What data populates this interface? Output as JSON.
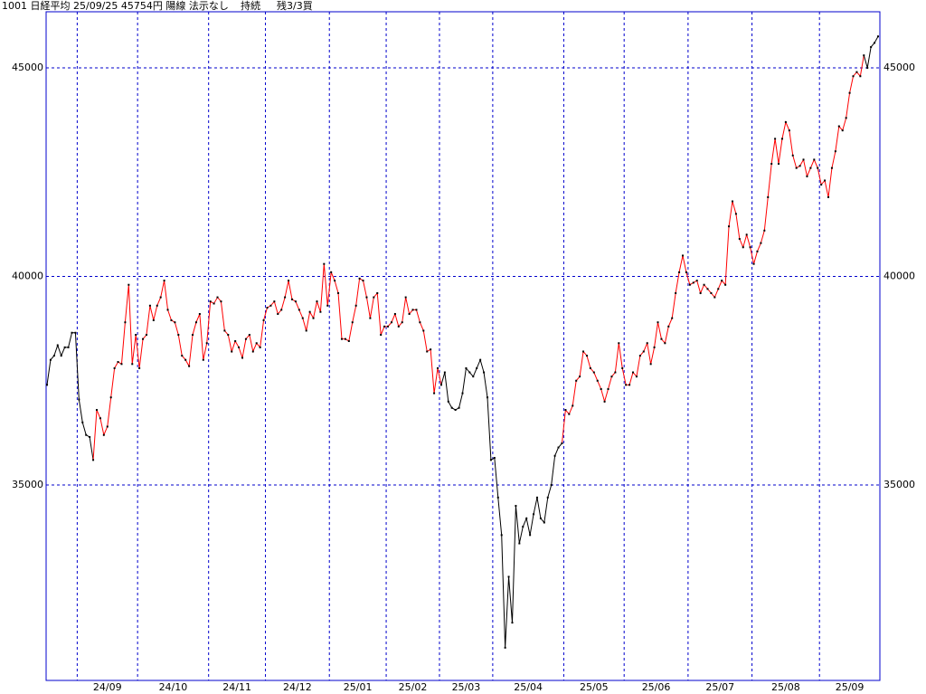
{
  "chart_data": {
    "type": "line",
    "title": "1001 日経平均 25/09/25 45754円 陽線 法示なし",
    "status": "持続",
    "position": "残3/3買",
    "values": [
      37400,
      38000,
      38100,
      38350,
      38100,
      38300,
      38300,
      38650,
      38650,
      37050,
      36500,
      36200,
      36150,
      35600,
      36800,
      36600,
      36200,
      36400,
      37100,
      37800,
      37950,
      37900,
      38900,
      39800,
      37900,
      38600,
      37800,
      38500,
      38600,
      39300,
      38950,
      39300,
      39500,
      39900,
      39200,
      38950,
      38900,
      38600,
      38100,
      38000,
      37850,
      38600,
      38900,
      39100,
      38000,
      38400,
      39400,
      39350,
      39500,
      39400,
      38700,
      38600,
      38200,
      38450,
      38300,
      38050,
      38500,
      38600,
      38200,
      38400,
      38300,
      38950,
      39250,
      39300,
      39400,
      39100,
      39200,
      39500,
      39900,
      39450,
      39400,
      39200,
      39000,
      38700,
      39150,
      39000,
      39400,
      39150,
      40300,
      39300,
      40100,
      39900,
      39600,
      38500,
      38500,
      38450,
      38900,
      39300,
      39950,
      39900,
      39500,
      39000,
      39500,
      39600,
      38600,
      38800,
      38800,
      38900,
      39100,
      38800,
      38900,
      39500,
      39100,
      39200,
      39200,
      38900,
      38700,
      38200,
      38250,
      37200,
      37800,
      37400,
      37700,
      37000,
      36850,
      36800,
      36850,
      37200,
      37800,
      37700,
      37600,
      37800,
      38000,
      37700,
      37100,
      35600,
      35650,
      34700,
      33800,
      31100,
      32800,
      31700,
      34500,
      33600,
      34000,
      34200,
      33800,
      34300,
      34700,
      34200,
      34100,
      34700,
      35000,
      35700,
      35900,
      36000,
      36800,
      36700,
      36900,
      37500,
      37600,
      38200,
      38100,
      37800,
      37700,
      37500,
      37300,
      37000,
      37300,
      37600,
      37700,
      38400,
      37800,
      37400,
      37400,
      37700,
      37600,
      38100,
      38200,
      38400,
      37900,
      38300,
      38900,
      38500,
      38400,
      38800,
      39000,
      39600,
      40100,
      40500,
      40100,
      39800,
      39850,
      39900,
      39600,
      39800,
      39700,
      39600,
      39500,
      39700,
      39900,
      39800,
      41200,
      41800,
      41500,
      40900,
      40700,
      41000,
      40700,
      40300,
      40600,
      40800,
      41100,
      41900,
      42700,
      43300,
      42700,
      43300,
      43700,
      43500,
      42900,
      42600,
      42650,
      42800,
      42400,
      42600,
      42800,
      42600,
      42200,
      42300,
      41900,
      42600,
      43000,
      43600,
      43500,
      43800,
      44400,
      44800,
      44900,
      44800,
      45300,
      45000,
      45500,
      45600,
      45754
    ],
    "segments": [
      {
        "color": "#000000",
        "start": 0,
        "end": 13
      },
      {
        "color": "#ff0000",
        "start": 14,
        "end": 111
      },
      {
        "color": "#000000",
        "start": 112,
        "end": 145
      },
      {
        "color": "#ff0000",
        "start": 146,
        "end": 230
      },
      {
        "color": "#000000",
        "start": 231,
        "end": 234
      }
    ],
    "marker_color": "#000000",
    "grid_color": "#0000cc",
    "ylim": [
      30315,
      46345
    ],
    "yticks": [
      35000,
      40000,
      45000
    ],
    "xticks": [
      {
        "value": 9,
        "label": "24/09"
      },
      {
        "value": 26,
        "label": "24/10"
      },
      {
        "value": 46,
        "label": "24/11"
      },
      {
        "value": 62,
        "label": "24/12"
      },
      {
        "value": 80,
        "label": "25/01"
      },
      {
        "value": 96,
        "label": "25/02"
      },
      {
        "value": 111,
        "label": "25/03"
      },
      {
        "value": 126,
        "label": "25/04"
      },
      {
        "value": 146,
        "label": "25/05"
      },
      {
        "value": 163,
        "label": "25/06"
      },
      {
        "value": 181,
        "label": "25/07"
      },
      {
        "value": 199,
        "label": "25/08"
      },
      {
        "value": 218,
        "label": "25/09"
      }
    ],
    "grid": true
  }
}
